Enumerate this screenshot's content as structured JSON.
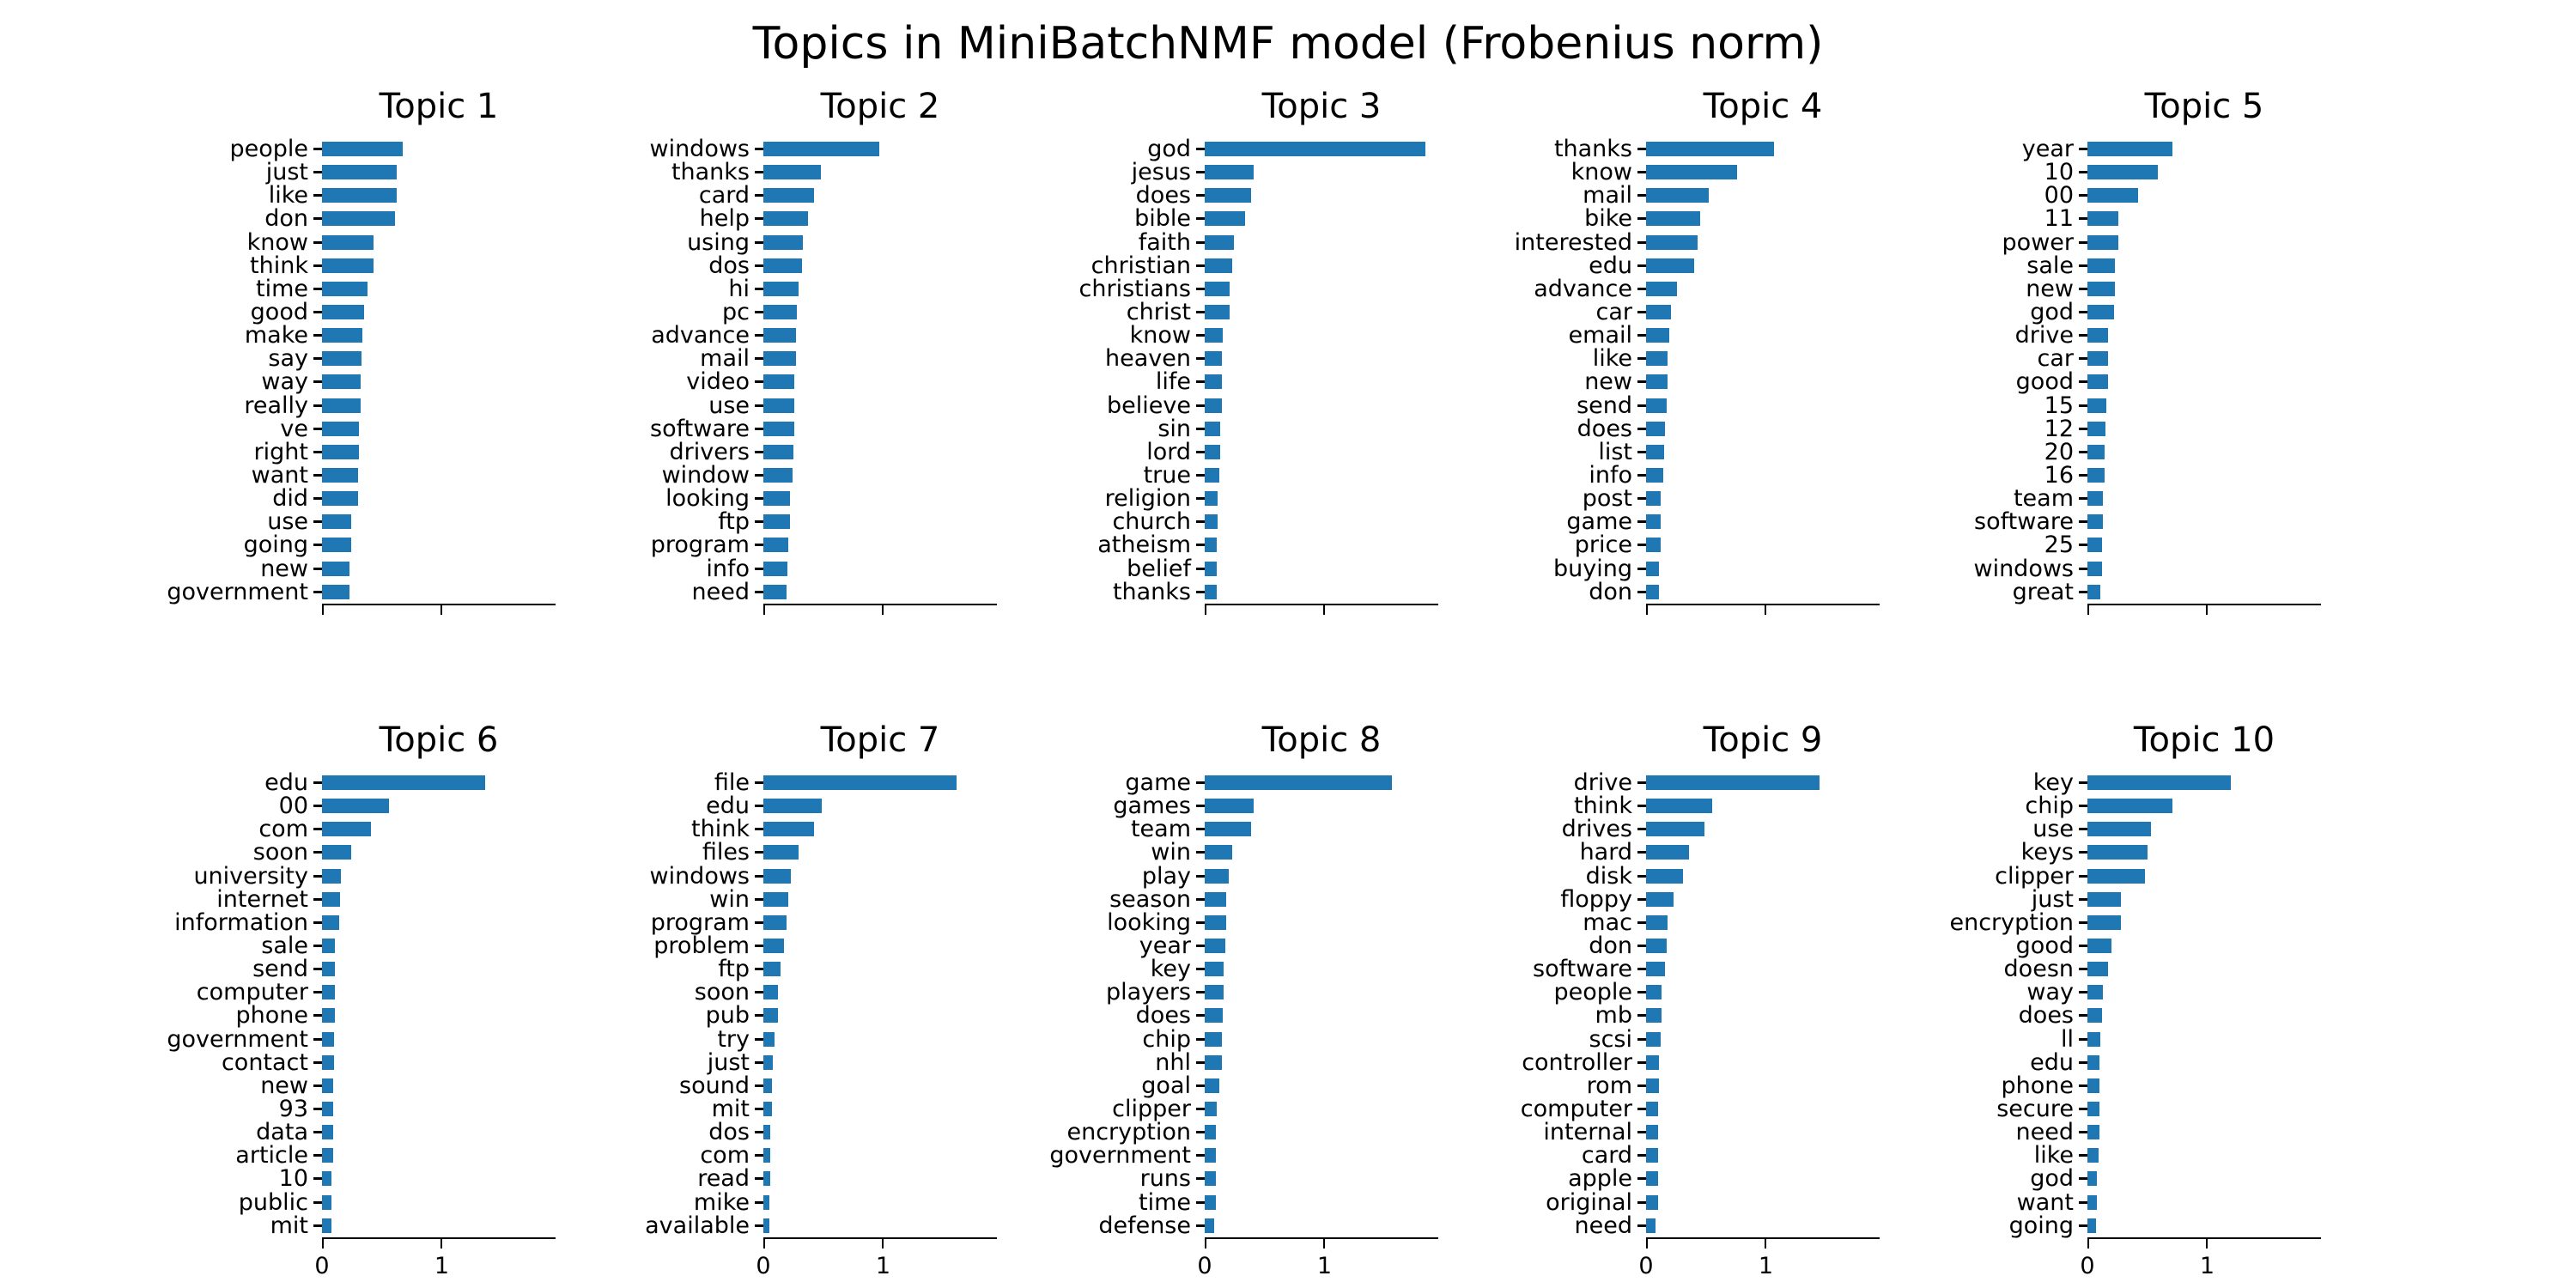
{
  "figure": {
    "background_color": "#ffffff",
    "bar_color": "#1f77b4",
    "axis_color": "#000000",
    "text_color": "#000000"
  },
  "chart_data": {
    "type": "bar",
    "orientation": "horizontal",
    "title": "Topics in MiniBatchNMF model (Frobenius norm)",
    "xlabel": "",
    "ylabel": "",
    "xlim": [
      0,
      1.95
    ],
    "xticks": [
      "0",
      "1"
    ],
    "xtick_values": [
      0,
      1
    ],
    "grid": false,
    "legend": null,
    "shared_x": true,
    "xtick_labels_shown_on": "bottom row only",
    "layout": "2 rows x 5 columns, bars sorted descending, top word at top",
    "subplots": [
      {
        "title": "Topic 1",
        "categories": [
          "people",
          "just",
          "like",
          "don",
          "know",
          "think",
          "time",
          "good",
          "make",
          "say",
          "way",
          "really",
          "ve",
          "right",
          "want",
          "did",
          "use",
          "going",
          "new",
          "government"
        ],
        "values": [
          0.67,
          0.62,
          0.62,
          0.61,
          0.43,
          0.43,
          0.38,
          0.35,
          0.34,
          0.33,
          0.32,
          0.32,
          0.31,
          0.31,
          0.3,
          0.3,
          0.24,
          0.24,
          0.23,
          0.23
        ]
      },
      {
        "title": "Topic 2",
        "categories": [
          "windows",
          "thanks",
          "card",
          "help",
          "using",
          "dos",
          "hi",
          "pc",
          "advance",
          "mail",
          "video",
          "use",
          "software",
          "drivers",
          "window",
          "looking",
          "ftp",
          "program",
          "info",
          "need"
        ],
        "values": [
          0.97,
          0.48,
          0.42,
          0.37,
          0.33,
          0.32,
          0.29,
          0.28,
          0.27,
          0.27,
          0.26,
          0.26,
          0.26,
          0.25,
          0.24,
          0.22,
          0.22,
          0.21,
          0.2,
          0.19
        ]
      },
      {
        "title": "Topic 3",
        "categories": [
          "god",
          "jesus",
          "does",
          "bible",
          "faith",
          "christian",
          "christians",
          "christ",
          "know",
          "heaven",
          "life",
          "believe",
          "sin",
          "lord",
          "true",
          "religion",
          "church",
          "atheism",
          "belief",
          "thanks"
        ],
        "values": [
          1.84,
          0.41,
          0.39,
          0.34,
          0.24,
          0.23,
          0.21,
          0.21,
          0.15,
          0.14,
          0.14,
          0.14,
          0.13,
          0.13,
          0.12,
          0.11,
          0.11,
          0.1,
          0.1,
          0.1
        ]
      },
      {
        "title": "Topic 4",
        "categories": [
          "thanks",
          "know",
          "mail",
          "bike",
          "interested",
          "edu",
          "advance",
          "car",
          "email",
          "like",
          "new",
          "send",
          "does",
          "list",
          "info",
          "post",
          "game",
          "price",
          "buying",
          "don"
        ],
        "values": [
          1.07,
          0.76,
          0.52,
          0.45,
          0.43,
          0.4,
          0.26,
          0.21,
          0.19,
          0.18,
          0.18,
          0.17,
          0.16,
          0.15,
          0.14,
          0.12,
          0.12,
          0.12,
          0.11,
          0.11
        ]
      },
      {
        "title": "Topic 5",
        "categories": [
          "year",
          "10",
          "00",
          "11",
          "power",
          "sale",
          "new",
          "god",
          "drive",
          "car",
          "good",
          "15",
          "12",
          "20",
          "16",
          "team",
          "software",
          "25",
          "windows",
          "great"
        ],
        "values": [
          0.71,
          0.59,
          0.42,
          0.26,
          0.26,
          0.23,
          0.23,
          0.22,
          0.17,
          0.17,
          0.17,
          0.16,
          0.15,
          0.14,
          0.14,
          0.13,
          0.13,
          0.12,
          0.12,
          0.11
        ]
      },
      {
        "title": "Topic 6",
        "categories": [
          "edu",
          "00",
          "com",
          "soon",
          "university",
          "internet",
          "information",
          "sale",
          "send",
          "computer",
          "phone",
          "government",
          "contact",
          "new",
          "93",
          "data",
          "article",
          "10",
          "public",
          "mit"
        ],
        "values": [
          1.36,
          0.56,
          0.41,
          0.24,
          0.16,
          0.15,
          0.14,
          0.11,
          0.11,
          0.11,
          0.11,
          0.1,
          0.1,
          0.09,
          0.09,
          0.09,
          0.09,
          0.08,
          0.08,
          0.08
        ]
      },
      {
        "title": "Topic 7",
        "categories": [
          "file",
          "edu",
          "think",
          "files",
          "windows",
          "win",
          "program",
          "problem",
          "ftp",
          "soon",
          "pub",
          "try",
          "just",
          "sound",
          "mit",
          "dos",
          "com",
          "read",
          "mike",
          "available"
        ],
        "values": [
          1.61,
          0.49,
          0.42,
          0.29,
          0.23,
          0.21,
          0.19,
          0.17,
          0.14,
          0.12,
          0.12,
          0.09,
          0.08,
          0.07,
          0.07,
          0.06,
          0.06,
          0.06,
          0.05,
          0.05
        ]
      },
      {
        "title": "Topic 8",
        "categories": [
          "game",
          "games",
          "team",
          "win",
          "play",
          "season",
          "looking",
          "year",
          "key",
          "players",
          "does",
          "chip",
          "nhl",
          "goal",
          "clipper",
          "encryption",
          "government",
          "runs",
          "time",
          "defense"
        ],
        "values": [
          1.56,
          0.41,
          0.39,
          0.23,
          0.2,
          0.18,
          0.18,
          0.17,
          0.16,
          0.16,
          0.15,
          0.14,
          0.14,
          0.12,
          0.1,
          0.09,
          0.09,
          0.09,
          0.09,
          0.08
        ]
      },
      {
        "title": "Topic 9",
        "categories": [
          "drive",
          "think",
          "drives",
          "hard",
          "disk",
          "floppy",
          "mac",
          "don",
          "software",
          "people",
          "mb",
          "scsi",
          "controller",
          "rom",
          "computer",
          "internal",
          "card",
          "apple",
          "original",
          "need"
        ],
        "values": [
          1.45,
          0.55,
          0.49,
          0.36,
          0.31,
          0.23,
          0.18,
          0.17,
          0.16,
          0.13,
          0.13,
          0.12,
          0.11,
          0.11,
          0.1,
          0.1,
          0.1,
          0.1,
          0.1,
          0.08
        ]
      },
      {
        "title": "Topic 10",
        "categories": [
          "key",
          "chip",
          "use",
          "keys",
          "clipper",
          "just",
          "encryption",
          "good",
          "doesn",
          "way",
          "does",
          "ll",
          "edu",
          "phone",
          "secure",
          "need",
          "like",
          "god",
          "want",
          "going"
        ],
        "values": [
          1.2,
          0.71,
          0.53,
          0.5,
          0.48,
          0.28,
          0.28,
          0.2,
          0.17,
          0.13,
          0.12,
          0.11,
          0.1,
          0.1,
          0.1,
          0.1,
          0.09,
          0.08,
          0.08,
          0.07
        ]
      }
    ]
  }
}
